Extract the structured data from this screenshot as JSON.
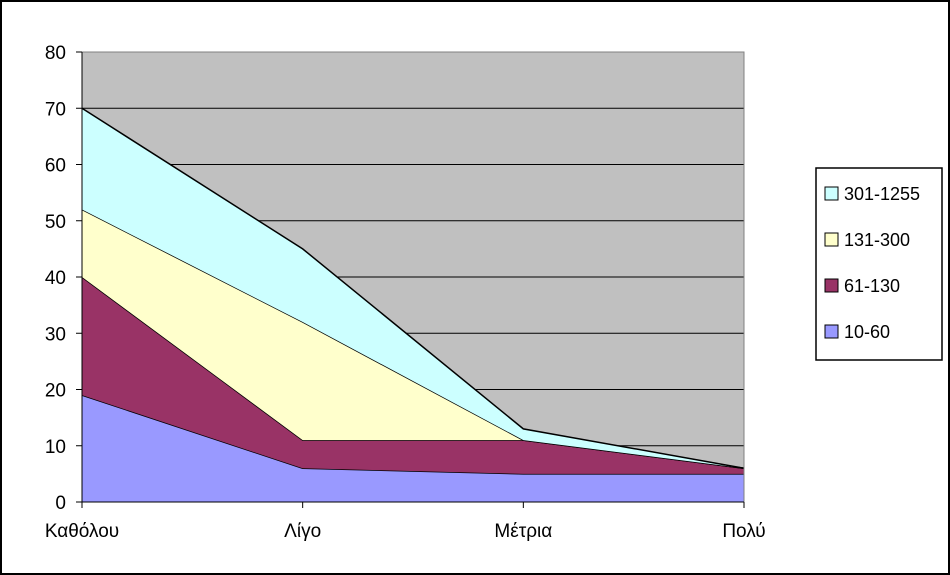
{
  "chart_data": {
    "type": "area",
    "stacked": true,
    "categories": [
      "Καθόλου",
      "Λίγο",
      "Μέτρια",
      "Πολύ"
    ],
    "series": [
      {
        "name": "10-60",
        "values": [
          19,
          6,
          5,
          5
        ],
        "color": "#9999ff"
      },
      {
        "name": "61-130",
        "values": [
          21,
          5,
          6,
          1
        ],
        "color": "#993366"
      },
      {
        "name": "131-300",
        "values": [
          12,
          21,
          0,
          0
        ],
        "color": "#ffffcc"
      },
      {
        "name": "301-1255",
        "values": [
          18,
          13,
          2,
          0
        ],
        "color": "#ccffff"
      }
    ],
    "legend_order": [
      "301-1255",
      "131-300",
      "61-130",
      "10-60"
    ],
    "ylim": [
      0,
      80
    ],
    "yticks": [
      "0",
      "10",
      "20",
      "30",
      "40",
      "50",
      "60",
      "70",
      "80"
    ],
    "grid": true,
    "legend_position": "right",
    "plot_background": "#c0c0c0",
    "title": "",
    "xlabel": "",
    "ylabel": ""
  }
}
